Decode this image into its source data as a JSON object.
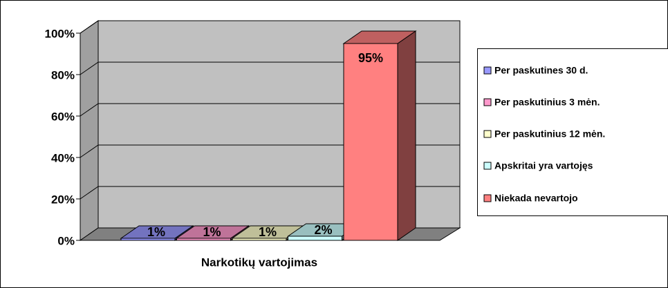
{
  "chart_data": {
    "type": "bar",
    "x_label": "Narkotikų vartojimas",
    "categories": [
      null
    ],
    "series": [
      {
        "name": "Per paskutines 30 d.",
        "color": "#9999ff",
        "values": [
          1
        ],
        "value_labels": [
          "1%"
        ]
      },
      {
        "name": "Per paskutinius 3 mėn.",
        "color": "#ff99cc",
        "values": [
          1
        ],
        "value_labels": [
          "1%"
        ]
      },
      {
        "name": "Per paskutinius 12 mėn.",
        "color": "#ffffcc",
        "values": [
          1
        ],
        "value_labels": [
          "1%"
        ]
      },
      {
        "name": "Apskritai yra vartojęs",
        "color": "#ccffff",
        "values": [
          2
        ],
        "value_labels": [
          "2%"
        ]
      },
      {
        "name": "Niekada nevartojo",
        "color": "#ff8080",
        "values": [
          95
        ],
        "value_labels": [
          "95%"
        ]
      }
    ],
    "ylim": [
      0,
      100
    ],
    "yticks": [
      {
        "value": 0,
        "label": "0%"
      },
      {
        "value": 20,
        "label": "20%"
      },
      {
        "value": 40,
        "label": "40%"
      },
      {
        "value": 60,
        "label": "60%"
      },
      {
        "value": 80,
        "label": "80%"
      },
      {
        "value": 100,
        "label": "100%"
      }
    ],
    "grid": true,
    "legend": "right"
  }
}
